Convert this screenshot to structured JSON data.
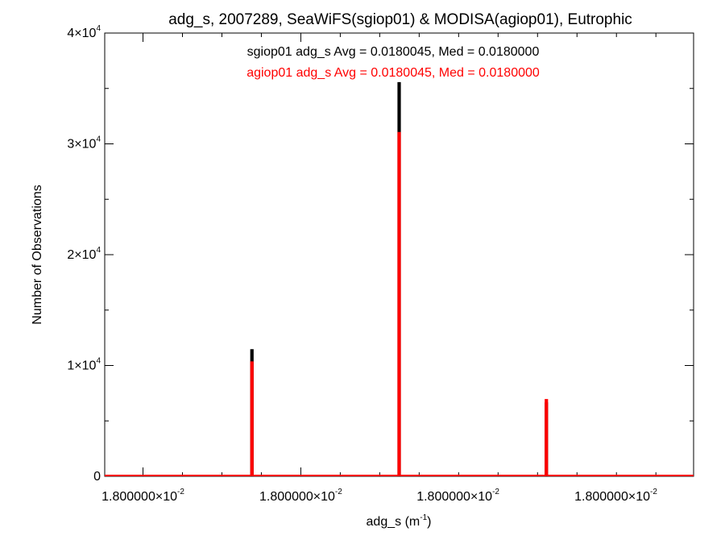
{
  "chart_data": {
    "type": "histogram",
    "title": "adg_s, 2007289, SeaWiFS(sgiop01) & MODISA(agiop01), Eutrophic",
    "xlabel": "adg_s (m",
    "xlabel_sup": "-1",
    "xlabel_suffix": ")",
    "ylabel": "Number of Observations",
    "ylim": [
      0,
      40000
    ],
    "y_ticks": [
      {
        "value": 0,
        "mantissa": "0",
        "exp": ""
      },
      {
        "value": 10000,
        "mantissa": "1×10",
        "exp": "4"
      },
      {
        "value": 20000,
        "mantissa": "2×10",
        "exp": "4"
      },
      {
        "value": 30000,
        "mantissa": "3×10",
        "exp": "4"
      },
      {
        "value": 40000,
        "mantissa": "4×10",
        "exp": "4"
      }
    ],
    "x_ticks": [
      {
        "pos": 0.065,
        "mantissa": "1.800000×10",
        "exp": "-2"
      },
      {
        "pos": 0.333,
        "mantissa": "1.800000×10",
        "exp": "-2"
      },
      {
        "pos": 0.6,
        "mantissa": "1.800000×10",
        "exp": "-2"
      },
      {
        "pos": 0.868,
        "mantissa": "1.800000×10",
        "exp": "-2"
      }
    ],
    "series": [
      {
        "name": "sgiop01",
        "color": "#000000",
        "bins": [
          {
            "pos": 0.25,
            "value": 11400
          },
          {
            "pos": 0.5,
            "value": 35500
          },
          {
            "pos": 0.75,
            "value": 6600
          }
        ]
      },
      {
        "name": "agiop01",
        "color": "#ff0000",
        "bins": [
          {
            "pos": 0.25,
            "value": 10300
          },
          {
            "pos": 0.5,
            "value": 31000
          },
          {
            "pos": 0.75,
            "value": 6900
          }
        ]
      }
    ],
    "annotations": [
      {
        "text": "sgiop01 adg_s Avg = 0.0180045, Med = 0.0180000",
        "color": "#000000"
      },
      {
        "text": "agiop01 adg_s Avg = 0.0180045, Med = 0.0180000",
        "color": "#ff0000"
      }
    ]
  }
}
